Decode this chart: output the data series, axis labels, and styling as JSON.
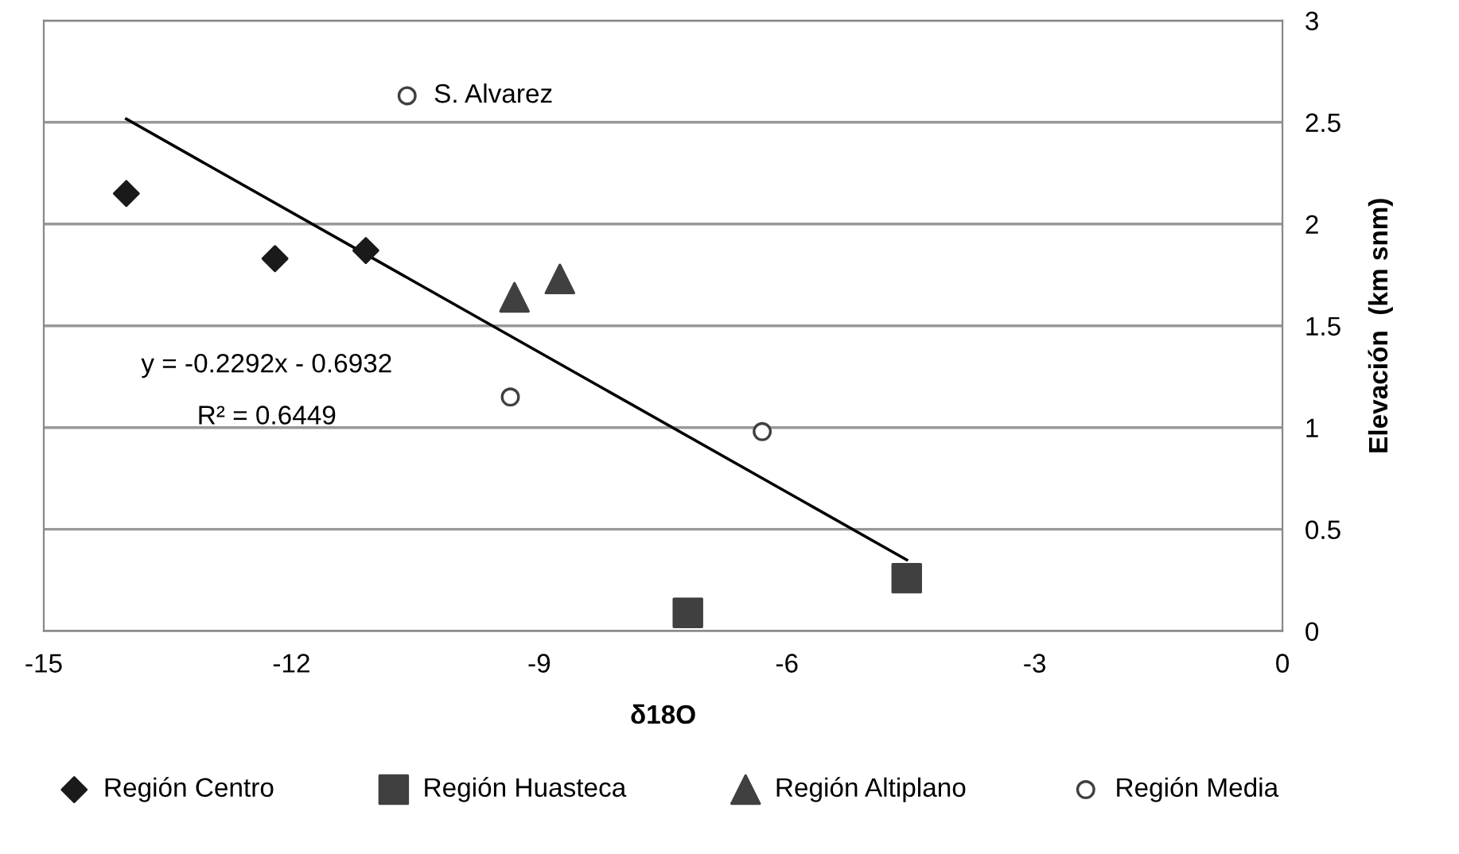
{
  "chart_data": {
    "type": "scatter",
    "xlabel": "δ18O",
    "ylabel": "Elevación  (km snm)",
    "xlim": [
      -15,
      0
    ],
    "xticks": [
      -15,
      -12,
      -9,
      -6,
      -3,
      0
    ],
    "ylim": [
      0,
      3
    ],
    "yticks": [
      0,
      0.5,
      1,
      1.5,
      2,
      2.5,
      3
    ],
    "grid": "y",
    "legend": "bottom",
    "series": [
      {
        "name": "Región Centro",
        "color": "#1a1a1a",
        "marker": "diamond",
        "x": [
          -14.0,
          -12.2,
          -11.1
        ],
        "values": [
          2.15,
          1.83,
          1.87
        ]
      },
      {
        "name": "Región Huasteca",
        "color": "#404040",
        "marker": "square",
        "x": [
          -7.2,
          -4.55
        ],
        "values": [
          0.09,
          0.26
        ]
      },
      {
        "name": "Región Altiplano",
        "color": "#404040",
        "marker": "triangle",
        "x": [
          -9.3,
          -8.75
        ],
        "values": [
          1.64,
          1.73
        ]
      },
      {
        "name": "Región Media",
        "color": "#404040",
        "marker": "circle",
        "x": [
          -10.6,
          -9.35,
          -6.3
        ],
        "values": [
          2.63,
          1.15,
          0.98
        ]
      },
      {
        "type": "line",
        "color": "#000000",
        "marker": "none",
        "x": [
          -14.0,
          -4.55
        ],
        "values": [
          2.516,
          0.35
        ]
      }
    ],
    "annotations": [
      {
        "text": "S. Alvarez",
        "x": -10.6,
        "y": 2.63
      },
      "y = -0.2292x - 0.6932",
      "R² = 0.6449"
    ]
  }
}
